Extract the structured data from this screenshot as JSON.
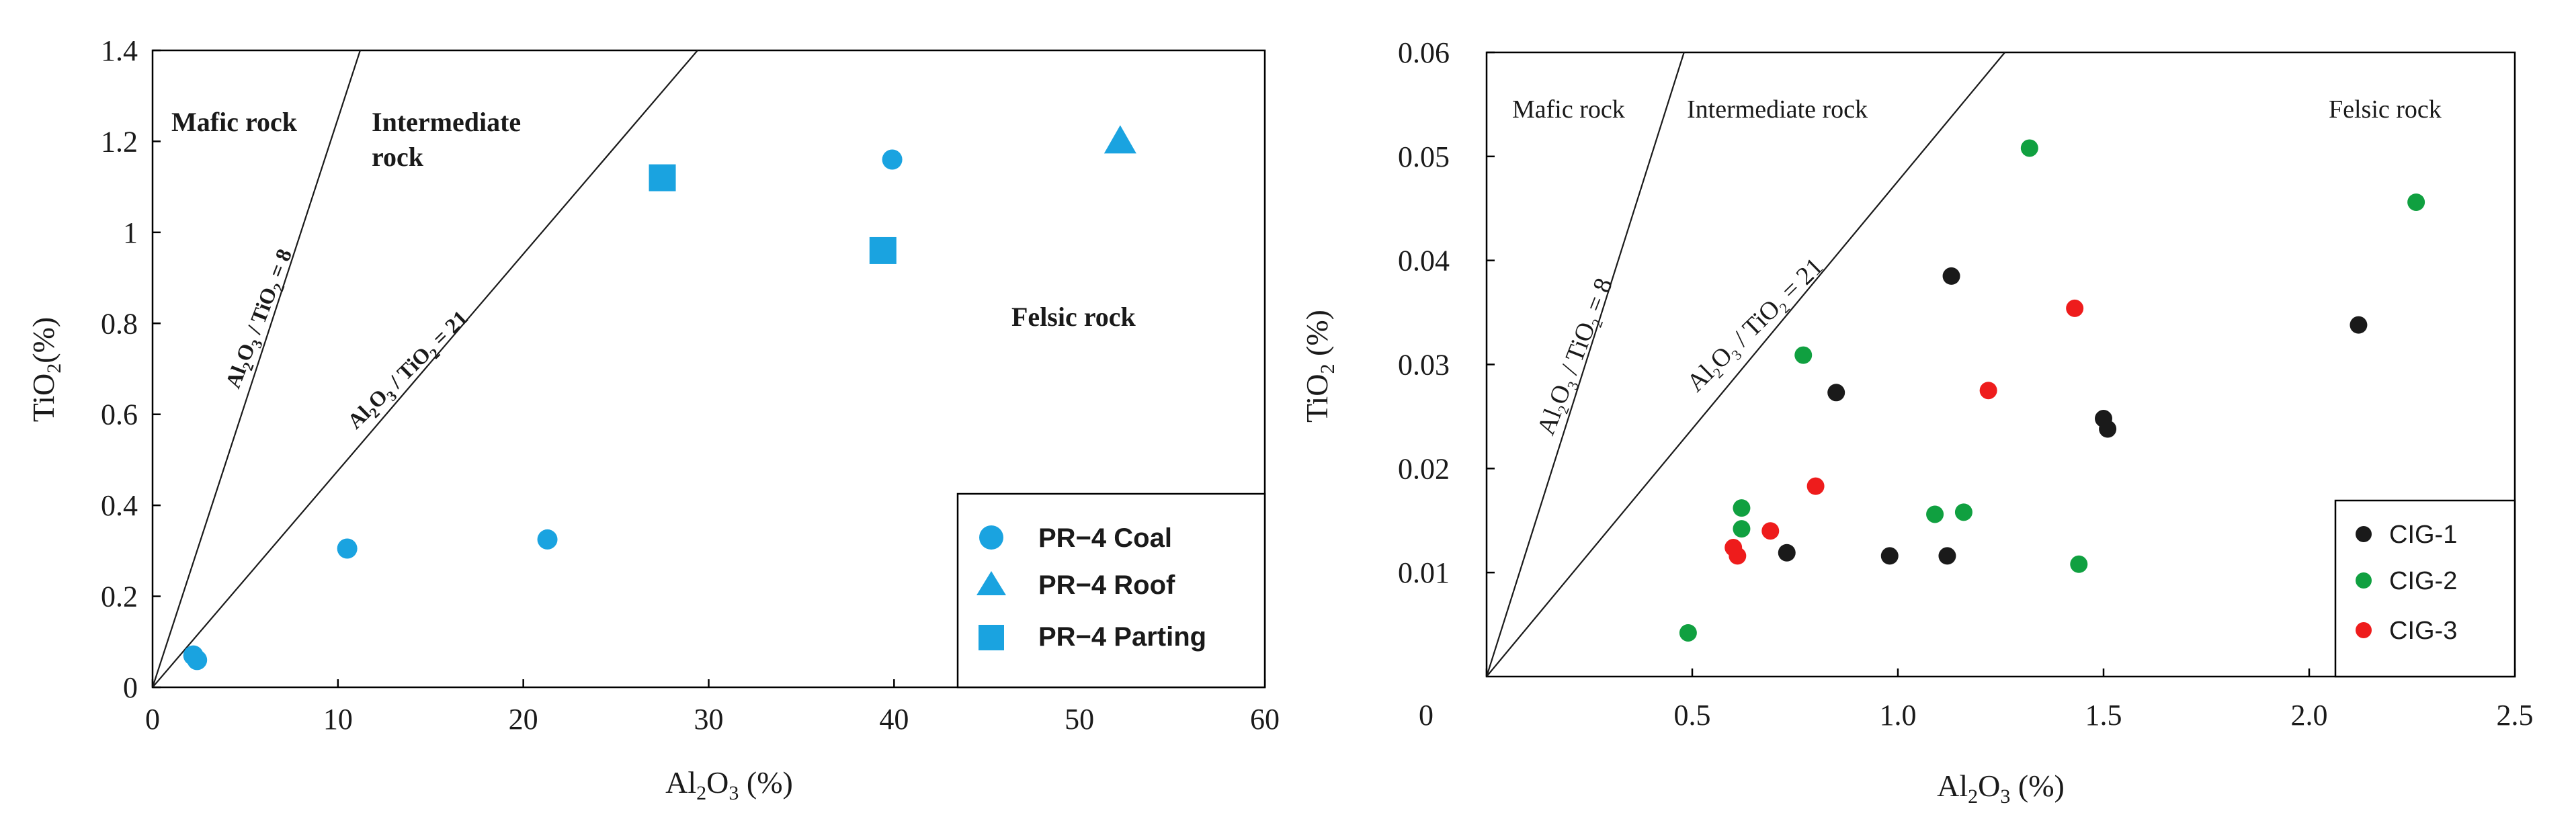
{
  "chart_data": [
    {
      "type": "scatter",
      "xlabel": "Al2O3 (%)",
      "ylabel": "TiO2(%)",
      "xlim": [
        0,
        60
      ],
      "ylim": [
        0,
        1.4
      ],
      "x_ticks": [
        "0",
        "10",
        "20",
        "30",
        "40",
        "50",
        "60"
      ],
      "y_ticks": [
        "0",
        "0.2",
        "0.4",
        "0.6",
        "0.8",
        "1",
        "1.2",
        "1.4"
      ],
      "regions": [
        "Mafic rock",
        "Intermediate rock",
        "Felsic rock"
      ],
      "ratio_lines": [
        {
          "label": "Al2O3 / TiO2 = 8",
          "ratio": 8
        },
        {
          "label": "Al2O3 / TiO2 = 21",
          "ratio": 21
        }
      ],
      "series": [
        {
          "name": "PR−4  Coal",
          "marker": "circle",
          "color": "#1aa3e0",
          "points": [
            [
              2.2,
              0.07
            ],
            [
              2.4,
              0.06
            ],
            [
              10.5,
              0.305
            ],
            [
              21.3,
              0.325
            ],
            [
              39.9,
              1.16
            ]
          ]
        },
        {
          "name": "PR−4  Roof",
          "marker": "triangle",
          "color": "#1aa3e0",
          "points": [
            [
              52.2,
              1.2
            ]
          ]
        },
        {
          "name": "PR−4  Parting",
          "marker": "square",
          "color": "#1aa3e0",
          "points": [
            [
              27.5,
              1.12
            ],
            [
              39.4,
              0.96
            ]
          ]
        }
      ]
    },
    {
      "type": "scatter",
      "xlabel": "Al2O3 (%)",
      "ylabel": "TiO2 (%)",
      "xlim": [
        0,
        2.5
      ],
      "ylim": [
        0,
        0.06
      ],
      "x_ticks": [
        "0",
        "0.5",
        "1.0",
        "1.5",
        "2.0",
        "2.5"
      ],
      "y_ticks": [
        "0.01",
        "0.02",
        "0.03",
        "0.04",
        "0.05",
        "0.06"
      ],
      "regions": [
        "Mafic rock",
        "Intermediate rock",
        "Felsic rock"
      ],
      "ratio_lines": [
        {
          "label": "Al2O3 / TiO2 = 8",
          "ratio": 8
        },
        {
          "label": "Al2O3 / TiO2 = 21",
          "ratio": 21
        }
      ],
      "series": [
        {
          "name": "CIG-1",
          "marker": "circle",
          "color": "#1a1a1a",
          "points": [
            [
              0.73,
              0.0119
            ],
            [
              0.85,
              0.0273
            ],
            [
              0.98,
              0.0116
            ],
            [
              1.12,
              0.0116
            ],
            [
              1.13,
              0.0385
            ],
            [
              1.5,
              0.0248
            ],
            [
              1.51,
              0.0238
            ],
            [
              2.12,
              0.0338
            ]
          ]
        },
        {
          "name": "CIG-2",
          "marker": "circle",
          "color": "#10a040",
          "points": [
            [
              0.49,
              0.0042
            ],
            [
              0.62,
              0.0162
            ],
            [
              0.62,
              0.0142
            ],
            [
              0.77,
              0.0309
            ],
            [
              1.09,
              0.0156
            ],
            [
              1.16,
              0.0158
            ],
            [
              1.32,
              0.0508
            ],
            [
              1.44,
              0.0108
            ],
            [
              2.26,
              0.0456
            ]
          ]
        },
        {
          "name": "CIG-3",
          "marker": "circle",
          "color": "#ee1c1c",
          "points": [
            [
              0.6,
              0.0124
            ],
            [
              0.61,
              0.0116
            ],
            [
              0.69,
              0.014
            ],
            [
              0.8,
              0.0183
            ],
            [
              1.22,
              0.0275
            ],
            [
              1.43,
              0.0354
            ]
          ]
        }
      ]
    }
  ]
}
